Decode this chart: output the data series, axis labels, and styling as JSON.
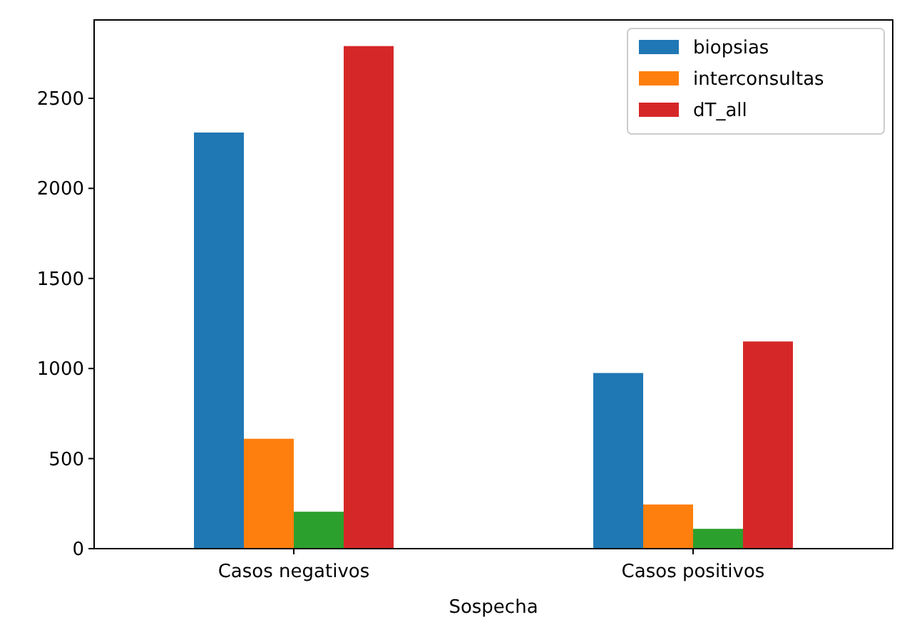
{
  "chart_data": {
    "type": "bar",
    "xlabel": "Sospecha",
    "categories": [
      "Casos negativos",
      "Casos positivos"
    ],
    "series": [
      {
        "name": "biopsias",
        "color": "#1f77b4",
        "values": [
          2310,
          975
        ]
      },
      {
        "name": "interconsultas",
        "color": "#ff7f0e",
        "values": [
          610,
          245
        ]
      },
      {
        "color": "#2ca02c",
        "values": [
          205,
          110
        ]
      },
      {
        "name": "dT_all",
        "color": "#d62728",
        "values": [
          2790,
          1150
        ]
      }
    ],
    "ylim": [
      0,
      2935
    ],
    "yticks": [
      0,
      500,
      1000,
      1500,
      2000,
      2500
    ],
    "legend": "top right",
    "grid": false
  }
}
